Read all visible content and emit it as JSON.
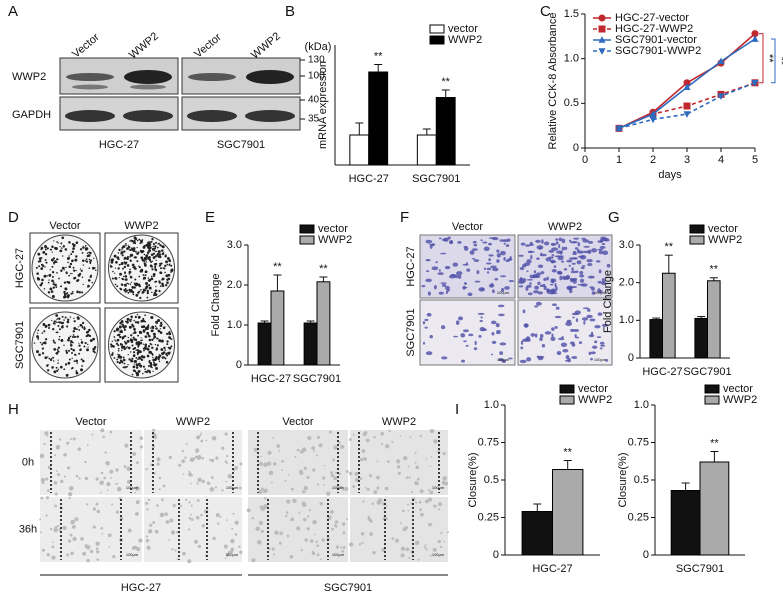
{
  "panel_labels": [
    "A",
    "B",
    "C",
    "D",
    "E",
    "F",
    "G",
    "H",
    "I"
  ],
  "blot": {
    "lanes": [
      "Vector",
      "WWP2",
      "Vector",
      "WWP2"
    ],
    "kda_label": "(kDa)",
    "kda_markers": [
      "130",
      "100",
      "40",
      "35"
    ],
    "rows": [
      "WWP2",
      "GAPDH"
    ],
    "groups": [
      "HGC-27",
      "SGC7901"
    ]
  },
  "colony": {
    "columns": [
      "Vector",
      "WWP2"
    ],
    "rows": [
      "HGC-27",
      "SGC7901"
    ]
  },
  "transwell": {
    "columns": [
      "Vector",
      "WWP2"
    ],
    "rows": [
      "HGC-27",
      "SGC7901"
    ],
    "scale_label": "100μm"
  },
  "wound": {
    "columns": [
      "Vector",
      "WWP2",
      "Vector",
      "WWP2"
    ],
    "rows": [
      "0h",
      "36h"
    ],
    "groups": [
      "HGC-27",
      "SGC7901"
    ],
    "scale_label": "100μm"
  },
  "chart_data": [
    {
      "type": "bar",
      "y_label": "mRNA expression",
      "categories": [
        "HGC-27",
        "SGC7901"
      ],
      "ylim": [
        0,
        4
      ],
      "legend": "top-right",
      "series": [
        {
          "name": "vector",
          "color": "#ffffff",
          "values": [
            1,
            1
          ],
          "errors": [
            0.4,
            0.2
          ]
        },
        {
          "name": "WWP2",
          "color": "#000000",
          "values": [
            3.1,
            2.25
          ],
          "errors": [
            0.25,
            0.25
          ]
        }
      ],
      "annotations": [
        "**",
        "**"
      ]
    },
    {
      "type": "line",
      "x_label": "days",
      "y_label": "Relative CCK-8 Absorbance",
      "x": [
        1,
        2,
        3,
        4,
        5
      ],
      "xlim": [
        0,
        5
      ],
      "xticks": [
        0,
        1,
        2,
        3,
        4,
        5
      ],
      "ylim": [
        0,
        1.5
      ],
      "yticks": [
        0,
        0.5,
        {
          "value": 1,
          "label": "1.0"
        },
        1.5
      ],
      "legend": "top-left",
      "series": [
        {
          "name": "HGC-27-vector",
          "color": "#c0282d",
          "marker": "circle",
          "dashed": false,
          "values": [
            0.22,
            0.4,
            0.73,
            0.95,
            1.28
          ]
        },
        {
          "name": "HGC-27-WWP2",
          "color": "#c0282d",
          "marker": "square",
          "dashed": true,
          "values": [
            0.22,
            0.38,
            0.47,
            0.6,
            0.73
          ]
        },
        {
          "name": "SGC7901-vector",
          "color": "#2e6bbf",
          "marker": "triangle",
          "dashed": false,
          "values": [
            0.22,
            0.38,
            0.68,
            0.97,
            1.22
          ]
        },
        {
          "name": "SGC7901-WWP2",
          "color": "#2e6bbf",
          "marker": "triangle-down",
          "dashed": true,
          "values": [
            0.22,
            0.32,
            0.38,
            0.58,
            0.73
          ]
        }
      ],
      "annotations": [
        "**",
        "**"
      ]
    },
    {
      "type": "bar",
      "y_label": "Fold Change",
      "categories": [
        "HGC-27",
        "SGC7901"
      ],
      "ylim": [
        0,
        3
      ],
      "yticks": [
        0,
        {
          "value": 1,
          "label": "1.0"
        },
        {
          "value": 2,
          "label": "2.0"
        },
        {
          "value": 3,
          "label": "3.0"
        }
      ],
      "legend": "top-right",
      "series": [
        {
          "name": "vector",
          "color": "#111111",
          "values": [
            1.05,
            1.05
          ],
          "errors": [
            0.05,
            0.05
          ]
        },
        {
          "name": "WWP2",
          "color": "#aaaaaa",
          "values": [
            1.85,
            2.08
          ],
          "errors": [
            0.4,
            0.12
          ]
        }
      ],
      "annotations": [
        "**",
        "**"
      ]
    },
    {
      "type": "bar",
      "y_label": "Fold Change",
      "categories": [
        "HGC-27",
        "SGC7901"
      ],
      "ylim": [
        0,
        3
      ],
      "yticks": [
        0,
        {
          "value": 1,
          "label": "1.0"
        },
        {
          "value": 2,
          "label": "2.0"
        },
        {
          "value": 3,
          "label": "3.0"
        }
      ],
      "legend": "top-right",
      "series": [
        {
          "name": "vector",
          "color": "#111111",
          "values": [
            1.02,
            1.05
          ],
          "errors": [
            0.04,
            0.05
          ]
        },
        {
          "name": "WWP2",
          "color": "#aaaaaa",
          "values": [
            2.25,
            2.05
          ],
          "errors": [
            0.48,
            0.08
          ]
        }
      ],
      "annotations": [
        "**",
        "**"
      ]
    },
    {
      "type": "bar",
      "y_label": "Closure(%)",
      "categories": [
        "HGC-27"
      ],
      "ylim": [
        0,
        1
      ],
      "yticks": [
        0,
        0.25,
        {
          "value": 0.5,
          "label": "0.5"
        },
        0.75,
        {
          "value": 1,
          "label": "1.0"
        }
      ],
      "legend": "top-right",
      "series": [
        {
          "name": "vector",
          "color": "#111111",
          "values": [
            0.29
          ],
          "errors": [
            0.05
          ]
        },
        {
          "name": "WWP2",
          "color": "#aaaaaa",
          "values": [
            0.57
          ],
          "errors": [
            0.06
          ]
        }
      ],
      "annotations": [
        "**"
      ]
    },
    {
      "type": "bar",
      "y_label": "Closure(%)",
      "categories": [
        "SGC7901"
      ],
      "ylim": [
        0,
        1
      ],
      "yticks": [
        0,
        0.25,
        {
          "value": 0.5,
          "label": "0.5"
        },
        0.75,
        {
          "value": 1,
          "label": "1.0"
        }
      ],
      "legend": "top-right",
      "series": [
        {
          "name": "vector",
          "color": "#111111",
          "values": [
            0.43
          ],
          "errors": [
            0.05
          ]
        },
        {
          "name": "WWP2",
          "color": "#aaaaaa",
          "values": [
            0.62
          ],
          "errors": [
            0.07
          ]
        }
      ],
      "annotations": [
        "**"
      ]
    }
  ]
}
